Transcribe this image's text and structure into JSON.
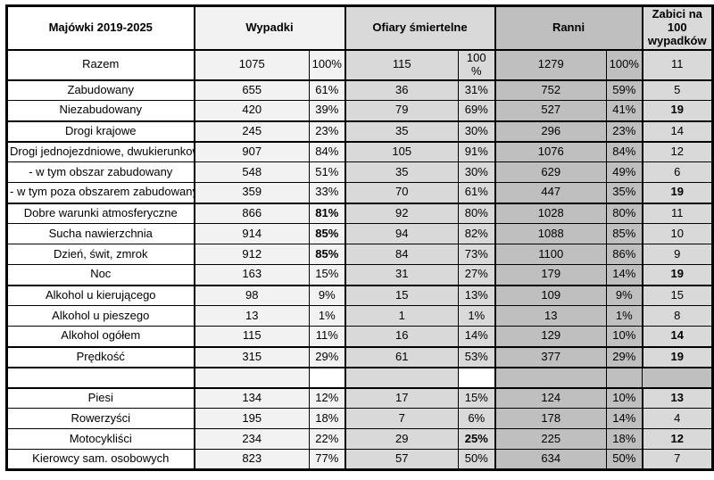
{
  "table": {
    "header": {
      "col0": "Majówki 2019-2025",
      "wypadki": "Wypadki",
      "ofiary": "Ofiary śmiertelne",
      "ranni": "Ranni",
      "zabici": "Zabici na 100 wypadków"
    },
    "colors": {
      "wypadki_bg": "#f2f2f2",
      "ofiary_bg": "#d9d9d9",
      "ranni_bg": "#bfbfbf",
      "zabici_bg": "#d9d9d9",
      "border": "#000000"
    },
    "rows": [
      {
        "label": "Razem",
        "cells": [
          "1075",
          "100%",
          "115",
          "100 %",
          "1279",
          "100%",
          "11"
        ],
        "bold": [],
        "thickTop": true,
        "tall": true
      },
      {
        "label": "Zabudowany",
        "cells": [
          "655",
          "61%",
          "36",
          "31%",
          "752",
          "59%",
          "5"
        ],
        "bold": [],
        "thickTop": true
      },
      {
        "label": "Niezabudowany",
        "cells": [
          "420",
          "39%",
          "79",
          "69%",
          "527",
          "41%",
          "19"
        ],
        "bold": [
          6
        ]
      },
      {
        "label": "Drogi krajowe",
        "cells": [
          "245",
          "23%",
          "35",
          "30%",
          "296",
          "23%",
          "14"
        ],
        "bold": [],
        "thickTop": true
      },
      {
        "label": "Drogi jednojezdniowe, dwukierunkowe",
        "cells": [
          "907",
          "84%",
          "105",
          "91%",
          "1076",
          "84%",
          "12"
        ],
        "bold": [],
        "thickTop": true
      },
      {
        "label": "- w tym obszar zabudowany",
        "cells": [
          "548",
          "51%",
          "35",
          "30%",
          "629",
          "49%",
          "6"
        ],
        "bold": []
      },
      {
        "label": "- w tym poza obszarem zabudowanym",
        "cells": [
          "359",
          "33%",
          "70",
          "61%",
          "447",
          "35%",
          "19"
        ],
        "bold": [
          6
        ]
      },
      {
        "label": "Dobre warunki atmosferyczne",
        "cells": [
          "866",
          "81%",
          "92",
          "80%",
          "1028",
          "80%",
          "11"
        ],
        "bold": [
          1
        ],
        "thickTop": true
      },
      {
        "label": "Sucha nawierzchnia",
        "cells": [
          "914",
          "85%",
          "94",
          "82%",
          "1088",
          "85%",
          "10"
        ],
        "bold": [
          1
        ]
      },
      {
        "label": "Dzień, świt, zmrok",
        "cells": [
          "912",
          "85%",
          "84",
          "73%",
          "1100",
          "86%",
          "9"
        ],
        "bold": [
          1
        ]
      },
      {
        "label": "Noc",
        "cells": [
          "163",
          "15%",
          "31",
          "27%",
          "179",
          "14%",
          "19"
        ],
        "bold": [
          6
        ]
      },
      {
        "label": "Alkohol u kierującego",
        "cells": [
          "98",
          "9%",
          "15",
          "13%",
          "109",
          "9%",
          "15"
        ],
        "bold": [],
        "thickTop": true
      },
      {
        "label": "Alkohol u pieszego",
        "cells": [
          "13",
          "1%",
          "1",
          "1%",
          "13",
          "1%",
          "8"
        ],
        "bold": []
      },
      {
        "label": "Alkohol ogółem",
        "cells": [
          "115",
          "11%",
          "16",
          "14%",
          "129",
          "10%",
          "14"
        ],
        "bold": [
          6
        ]
      },
      {
        "label": "Prędkość",
        "cells": [
          "315",
          "29%",
          "61",
          "53%",
          "377",
          "29%",
          "19"
        ],
        "bold": [
          6
        ],
        "thickTop": true
      },
      {
        "label": "",
        "cells": [
          "",
          "",
          "",
          "",
          "",
          "",
          ""
        ],
        "bold": [],
        "thickTop": true,
        "empty": true
      },
      {
        "label": "Piesi",
        "cells": [
          "134",
          "12%",
          "17",
          "15%",
          "124",
          "10%",
          "13"
        ],
        "bold": [
          6
        ],
        "thickTop": true
      },
      {
        "label": "Rowerzyści",
        "cells": [
          "195",
          "18%",
          "7",
          "6%",
          "178",
          "14%",
          "4"
        ],
        "bold": []
      },
      {
        "label": "Motocykliści",
        "cells": [
          "234",
          "22%",
          "29",
          "25%",
          "225",
          "18%",
          "12"
        ],
        "bold": [
          3,
          6
        ]
      },
      {
        "label": "Kierowcy sam. osobowych",
        "cells": [
          "823",
          "77%",
          "57",
          "50%",
          "634",
          "50%",
          "7"
        ],
        "bold": []
      }
    ]
  }
}
